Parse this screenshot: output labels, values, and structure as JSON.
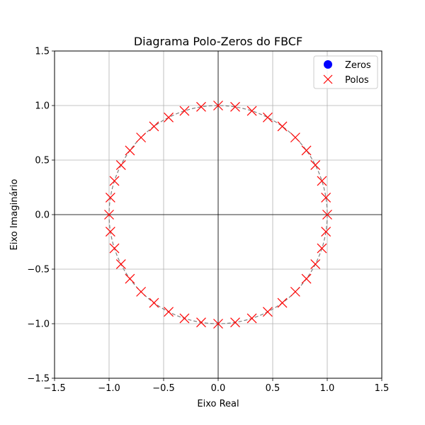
{
  "chart_data": {
    "type": "scatter",
    "title": "Diagrama Polo-Zeros do FBCF",
    "xlabel": "Eixo Real",
    "ylabel": "Eixo Imaginário",
    "xlim": [
      -1.5,
      1.5
    ],
    "ylim": [
      -1.5,
      1.5
    ],
    "xticks": [
      -1.5,
      -1.0,
      -0.5,
      0.0,
      0.5,
      1.0,
      1.5
    ],
    "yticks": [
      -1.5,
      -1.0,
      -0.5,
      0.0,
      0.5,
      1.0,
      1.5
    ],
    "xtick_labels": [
      "−1.5",
      "−1.0",
      "−0.5",
      "0.0",
      "0.5",
      "1.0",
      "1.5"
    ],
    "ytick_labels": [
      "−1.5",
      "−1.0",
      "−0.5",
      "0.0",
      "0.5",
      "1.0",
      "1.5"
    ],
    "grid": true,
    "legend_position": "top-right",
    "unit_circle": {
      "radius": 1.0,
      "style": "dashed",
      "color": "#808080"
    },
    "series": [
      {
        "name": "Zeros",
        "marker": "circle",
        "color": "#0000ff",
        "points": []
      },
      {
        "name": "Polos",
        "marker": "x",
        "color": "#ff0000",
        "points": [
          [
            1.0,
            0.0
          ],
          [
            0.988,
            0.156
          ],
          [
            0.951,
            0.309
          ],
          [
            0.891,
            0.454
          ],
          [
            0.809,
            0.588
          ],
          [
            0.707,
            0.707
          ],
          [
            0.588,
            0.809
          ],
          [
            0.454,
            0.891
          ],
          [
            0.309,
            0.951
          ],
          [
            0.156,
            0.988
          ],
          [
            0.0,
            1.0
          ],
          [
            -0.156,
            0.988
          ],
          [
            -0.309,
            0.951
          ],
          [
            -0.454,
            0.891
          ],
          [
            -0.588,
            0.809
          ],
          [
            -0.707,
            0.707
          ],
          [
            -0.809,
            0.588
          ],
          [
            -0.891,
            0.454
          ],
          [
            -0.951,
            0.309
          ],
          [
            -0.988,
            0.156
          ],
          [
            -1.0,
            0.0
          ],
          [
            -0.988,
            -0.156
          ],
          [
            -0.951,
            -0.309
          ],
          [
            -0.891,
            -0.454
          ],
          [
            -0.809,
            -0.588
          ],
          [
            -0.707,
            -0.707
          ],
          [
            -0.588,
            -0.809
          ],
          [
            -0.454,
            -0.891
          ],
          [
            -0.309,
            -0.951
          ],
          [
            -0.156,
            -0.988
          ],
          [
            0.0,
            -1.0
          ],
          [
            0.156,
            -0.988
          ],
          [
            0.309,
            -0.951
          ],
          [
            0.454,
            -0.891
          ],
          [
            0.588,
            -0.809
          ],
          [
            0.707,
            -0.707
          ],
          [
            0.809,
            -0.588
          ],
          [
            0.891,
            -0.454
          ],
          [
            0.951,
            -0.309
          ],
          [
            0.988,
            -0.156
          ]
        ]
      }
    ]
  }
}
